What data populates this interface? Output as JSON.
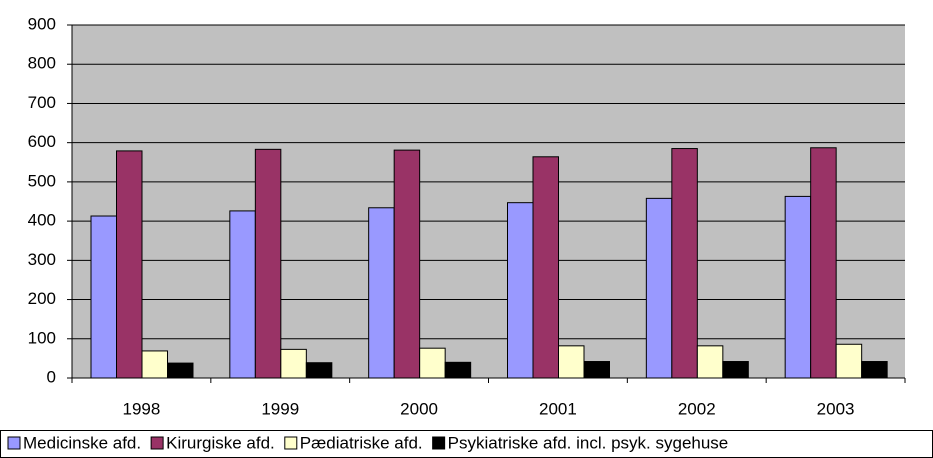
{
  "chart_data": {
    "type": "bar",
    "categories": [
      "1998",
      "1999",
      "2000",
      "2001",
      "2002",
      "2003"
    ],
    "series": [
      {
        "name": "Medicinske afd.",
        "color": "#9999ff",
        "values": [
          413,
          426,
          434,
          447,
          458,
          463
        ]
      },
      {
        "name": "Kirurgiske afd.",
        "color": "#993366",
        "values": [
          579,
          583,
          581,
          564,
          585,
          587
        ]
      },
      {
        "name": "Pædiatriske afd.",
        "color": "#ffffcc",
        "values": [
          69,
          73,
          76,
          82,
          82,
          86
        ]
      },
      {
        "name": "Psykiatriske afd. incl. psyk. sygehuse",
        "color": "#000000",
        "values": [
          38,
          39,
          40,
          42,
          42,
          42
        ]
      }
    ],
    "ylim": [
      0,
      900
    ],
    "yticks": [
      0,
      100,
      200,
      300,
      400,
      500,
      600,
      700,
      800,
      900
    ],
    "grid": true,
    "plot_background": "#c0c0c0",
    "legend": "bottom"
  }
}
